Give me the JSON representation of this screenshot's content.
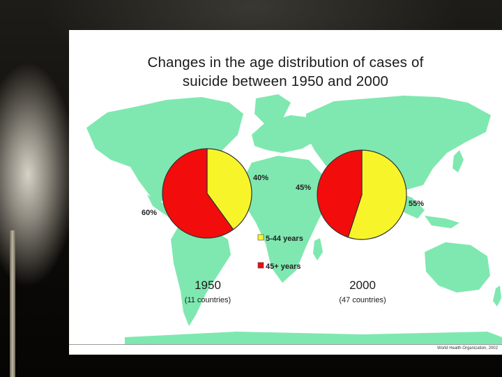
{
  "slide": {
    "title_line1": "Changes in the age distribution of cases of",
    "title_line2": "suicide between 1950 and 2000",
    "credit": "World Health Organization, 2002"
  },
  "colors": {
    "map": "#7fe8b0",
    "young": "#f7f52a",
    "old": "#f20c0c",
    "outline": "#333333"
  },
  "chart_data": [
    {
      "type": "pie",
      "year": "1950",
      "note": "(11 countries)",
      "slices": [
        {
          "label": "5-44 years",
          "value": 40,
          "display": "40%"
        },
        {
          "label": "45+ years",
          "value": 60,
          "display": "60%"
        }
      ]
    },
    {
      "type": "pie",
      "year": "2000",
      "note": "(47 countries)",
      "slices": [
        {
          "label": "5-44 years",
          "value": 55,
          "display": "55%"
        },
        {
          "label": "45+ years",
          "value": 45,
          "display": "45%"
        }
      ]
    }
  ],
  "legend": [
    {
      "label": "5-44 years",
      "color": "#f7f52a"
    },
    {
      "label": "45+ years",
      "color": "#f20c0c"
    }
  ]
}
